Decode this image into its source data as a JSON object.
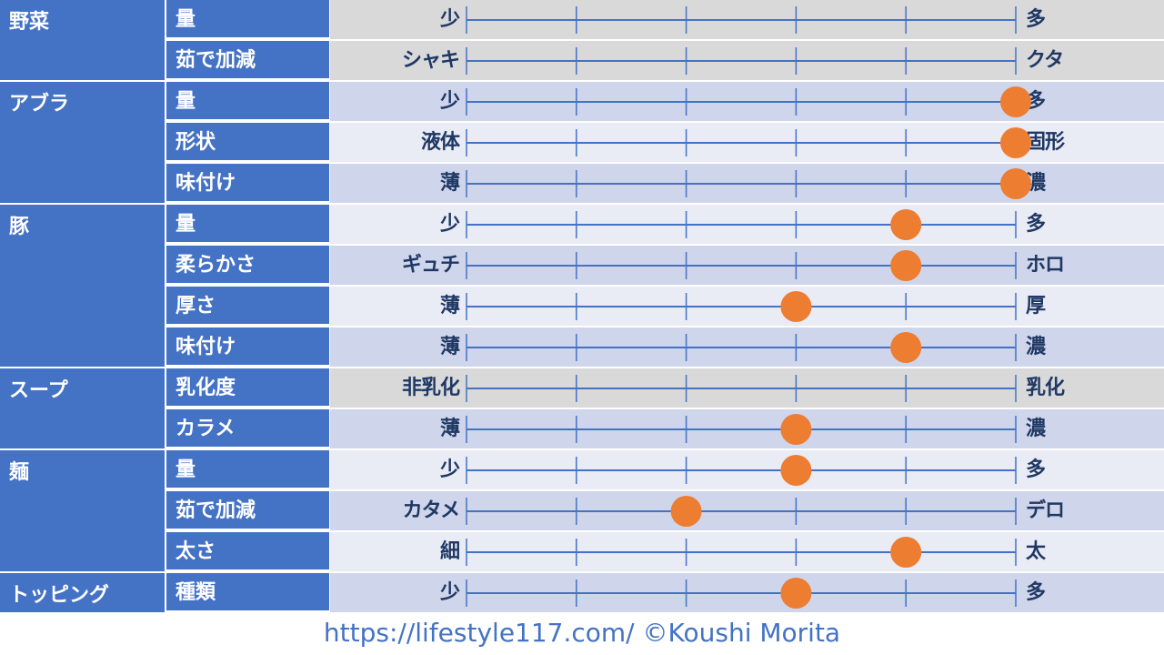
{
  "colors": {
    "header": "#4472c4",
    "line": "#4472c4",
    "dot": "#ed7d31",
    "text": "#1f3864"
  },
  "chart_data": {
    "type": "scatter",
    "scale_steps": 6,
    "rows": [
      {
        "category": "野菜",
        "attribute": "量",
        "left": "少",
        "right": "多",
        "value": null
      },
      {
        "category": "",
        "attribute": "茹で加減",
        "left": "シャキ",
        "right": "クタ",
        "value": null
      },
      {
        "category": "アブラ",
        "attribute": "量",
        "left": "少",
        "right": "多",
        "value": 5
      },
      {
        "category": "",
        "attribute": "形状",
        "left": "液体",
        "right": "固形",
        "value": 5
      },
      {
        "category": "",
        "attribute": "味付け",
        "left": "薄",
        "right": "濃",
        "value": 5
      },
      {
        "category": "豚",
        "attribute": "量",
        "left": "少",
        "right": "多",
        "value": 4
      },
      {
        "category": "",
        "attribute": "柔らかさ",
        "left": "ギュチ",
        "right": "ホロ",
        "value": 4
      },
      {
        "category": "",
        "attribute": "厚さ",
        "left": "薄",
        "right": "厚",
        "value": 3
      },
      {
        "category": "",
        "attribute": "味付け",
        "left": "薄",
        "right": "濃",
        "value": 4
      },
      {
        "category": "スープ",
        "attribute": "乳化度",
        "left": "非乳化",
        "right": "乳化",
        "value": null
      },
      {
        "category": "",
        "attribute": "カラメ",
        "left": "薄",
        "right": "濃",
        "value": 3
      },
      {
        "category": "麺",
        "attribute": "量",
        "left": "少",
        "right": "多",
        "value": 3
      },
      {
        "category": "",
        "attribute": "茹で加減",
        "left": "カタメ",
        "right": "デロ",
        "value": 2
      },
      {
        "category": "",
        "attribute": "太さ",
        "left": "細",
        "right": "太",
        "value": 4
      },
      {
        "category": "トッピング",
        "attribute": "種類",
        "left": "少",
        "right": "多",
        "value": 3
      }
    ]
  },
  "footer": {
    "text": "https://lifestyle117.com/  ©Koushi Morita"
  }
}
